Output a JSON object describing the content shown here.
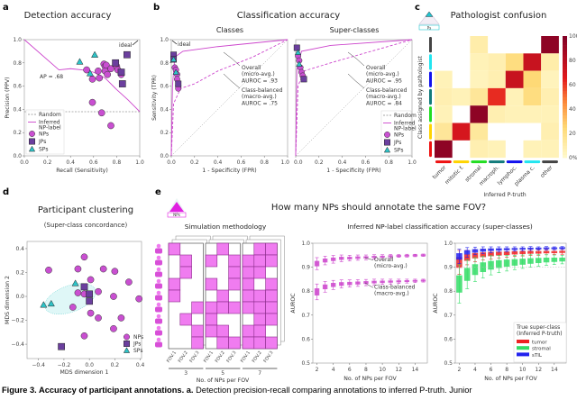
{
  "panels": {
    "a": {
      "letter": "a"
    },
    "b": {
      "letter": "b",
      "title": "Classification accuracy"
    },
    "c": {
      "letter": "c",
      "icon_label": "Ps"
    },
    "d": {
      "letter": "d"
    },
    "e": {
      "letter": "e",
      "title": "How many NPs should annotate the same FOV?",
      "icon_label": "NPs",
      "right_title": "Inferred NP-label classification accuracy (super-classes)"
    }
  },
  "colors": {
    "NPs": "#c94fd1",
    "JPs": "#6b3f9e",
    "SPs": "#2ec4c8",
    "curve": "#cc44cc",
    "sim_fill": "#f07cf0"
  },
  "caption": {
    "bold": "Figure 3. Accuracy of participant annotations. a.",
    "text": " Detection precision-recall comparing annotations to inferred P-truth. Junior"
  },
  "chart_data": [
    {
      "type": "scatter",
      "title": "Detection accuracy",
      "xlabel": "Recall (Sensitivity)",
      "ylabel": "Precision (PPV)",
      "xlim": [
        0,
        1
      ],
      "ylim": [
        0,
        1
      ],
      "xticks": [
        "0.0",
        "0.2",
        "0.4",
        "0.6",
        "0.8",
        "1.0"
      ],
      "yticks": [
        "0.0",
        "0.2",
        "0.4",
        "0.6",
        "0.8",
        "1.0"
      ],
      "grid": false,
      "legend_position": "bottom-left",
      "legend": [
        [
          "Random"
        ],
        [
          "Inferred",
          "NP-label"
        ],
        [
          "NPs"
        ],
        [
          "JPs"
        ],
        [
          "SPs"
        ]
      ],
      "annotations": {
        "ideal": "ideal",
        "ap": "AP = .68"
      },
      "random_baseline": 0.38,
      "curve": {
        "name": "Inferred NP-label",
        "x": [
          0,
          0.3,
          0.4,
          0.5,
          0.6,
          0.7,
          0.8,
          0.9,
          1.0
        ],
        "y": [
          1.0,
          0.74,
          0.75,
          0.74,
          0.72,
          0.67,
          0.57,
          0.48,
          0.38
        ]
      },
      "points": {
        "NPs": [
          [
            0.54,
            0.74
          ],
          [
            0.59,
            0.66
          ],
          [
            0.64,
            0.73
          ],
          [
            0.65,
            0.67
          ],
          [
            0.69,
            0.79
          ],
          [
            0.7,
            0.77
          ],
          [
            0.71,
            0.78
          ],
          [
            0.7,
            0.73
          ],
          [
            0.72,
            0.7
          ],
          [
            0.75,
            0.75
          ],
          [
            0.8,
            0.77
          ],
          [
            0.81,
            0.74
          ],
          [
            0.84,
            0.7
          ],
          [
            0.59,
            0.46
          ],
          [
            0.67,
            0.37
          ],
          [
            0.75,
            0.26
          ]
        ],
        "JPs": [
          [
            0.79,
            0.8
          ],
          [
            0.84,
            0.72
          ],
          [
            0.85,
            0.62
          ],
          [
            0.89,
            0.87
          ]
        ],
        "SPs": [
          [
            0.48,
            0.81
          ],
          [
            0.61,
            0.87
          ],
          [
            0.57,
            0.71
          ]
        ]
      }
    },
    {
      "type": "line",
      "title": "Classes",
      "xlabel": "1 - Specificity (FPR)",
      "ylabel": "Sensitivity (TPR)",
      "xlim": [
        0,
        1
      ],
      "ylim": [
        0,
        1
      ],
      "xticks": [
        "0.0",
        "0.2",
        "0.4",
        "0.6",
        "0.8",
        "1.0"
      ],
      "yticks": [
        "0.0",
        "0.2",
        "0.4",
        "0.6",
        "0.8",
        "1.0"
      ],
      "annotations": {
        "ideal": "ideal",
        "overall": [
          "Overall",
          "(micro-avg.)",
          "AUROC = .93"
        ],
        "balanced": [
          "Class-balanced",
          "(macro-avg.)",
          "AUROC = .75"
        ]
      },
      "series": [
        {
          "name": "Overall (micro-avg.)",
          "x": [
            0,
            0.01,
            0.03,
            0.1,
            0.4,
            1
          ],
          "y": [
            0,
            0.6,
            0.85,
            0.9,
            0.94,
            1
          ]
        },
        {
          "name": "Class-balanced (macro-avg.)",
          "x": [
            0,
            0.02,
            0.08,
            0.2,
            0.4,
            0.7,
            1
          ],
          "y": [
            0,
            0.45,
            0.58,
            0.62,
            0.73,
            0.85,
            1
          ]
        }
      ],
      "points": {
        "NPs": [
          [
            0.03,
            0.76
          ],
          [
            0.04,
            0.74
          ],
          [
            0.05,
            0.7
          ],
          [
            0.05,
            0.66
          ],
          [
            0.06,
            0.6
          ],
          [
            0.06,
            0.58
          ]
        ],
        "JPs": [
          [
            0.02,
            0.87
          ],
          [
            0.02,
            0.83
          ],
          [
            0.06,
            0.62
          ]
        ],
        "SPs": [
          [
            0.02,
            0.83
          ],
          [
            0.04,
            0.72
          ]
        ]
      }
    },
    {
      "type": "line",
      "title": "Super-classes",
      "xlabel": "1 - Specificity (FPR)",
      "xlim": [
        0,
        1
      ],
      "ylim": [
        0,
        1
      ],
      "xticks": [
        "0.0",
        "0.2",
        "0.4",
        "0.6",
        "0.8",
        "1.0"
      ],
      "legend_position": "bottom-right",
      "legend": [
        [
          "Random"
        ],
        [
          "Inferred",
          "NP-label"
        ],
        [
          "NPs"
        ],
        [
          "JPs"
        ],
        [
          "SPs"
        ]
      ],
      "annotations": {
        "overall": [
          "Overall",
          "(micro-avg.)",
          "AUROC = .95"
        ],
        "balanced": [
          "Class-balanced",
          "(macro-avg.)",
          "AUROC = .84"
        ]
      },
      "series": [
        {
          "name": "Overall (micro-avg.)",
          "x": [
            0,
            0.01,
            0.05,
            0.3,
            1
          ],
          "y": [
            0,
            0.75,
            0.9,
            0.95,
            1
          ]
        },
        {
          "name": "Class-balanced (macro-avg.)",
          "x": [
            0,
            0.02,
            0.07,
            0.3,
            1
          ],
          "y": [
            0,
            0.6,
            0.73,
            0.8,
            1
          ]
        }
      ],
      "points": {
        "NPs": [
          [
            0.02,
            0.86
          ],
          [
            0.03,
            0.82
          ],
          [
            0.04,
            0.76
          ],
          [
            0.05,
            0.72
          ],
          [
            0.06,
            0.69
          ]
        ],
        "JPs": [
          [
            0.01,
            0.93
          ],
          [
            0.07,
            0.66
          ]
        ],
        "SPs": [
          [
            0.02,
            0.89
          ],
          [
            0.03,
            0.79
          ]
        ]
      }
    },
    {
      "type": "heatmap",
      "title": "Pathologist confusion",
      "xlabel": "Inferred P-truth",
      "ylabel": "Class assigned by pathologist",
      "columns": [
        "tumor",
        "mitotic f.",
        "stromal",
        "macroph.",
        "lymphoc.",
        "plasma c.",
        "other"
      ],
      "rows": [
        "other",
        "plasma c.",
        "lymphoc.",
        "macroph.",
        "stromal",
        "mitotic f.",
        "tumor"
      ],
      "class_colors": {
        "tumor": "#ee1111",
        "mitotic f.": "#ffd400",
        "stromal": "#22dd22",
        "macroph.": "#127b7b",
        "lymphoc.": "#1111ee",
        "plasma c.": "#22e5f0",
        "other": "#444444"
      },
      "values": [
        [
          0,
          0,
          10,
          0,
          0,
          0,
          95
        ],
        [
          0,
          0,
          6,
          8,
          22,
          75,
          10
        ],
        [
          6,
          0,
          5,
          8,
          75,
          25,
          5
        ],
        [
          8,
          6,
          15,
          62,
          6,
          22,
          8
        ],
        [
          6,
          0,
          95,
          8,
          6,
          6,
          6
        ],
        [
          15,
          70,
          14,
          0,
          0,
          0,
          8
        ],
        [
          95,
          0,
          8,
          6,
          0,
          6,
          6
        ]
      ],
      "colorbar_ticks": [
        "100%",
        "80",
        "60",
        "40",
        "20",
        "0%"
      ],
      "range": [
        0,
        100
      ]
    },
    {
      "type": "scatter",
      "title": "Participant clustering",
      "subtitle": "(Super-class concordance)",
      "xlabel": "MDS dimension 1",
      "ylabel": "MDS dimension 2",
      "xlim": [
        -0.49,
        0.41
      ],
      "ylim": [
        -0.52,
        0.46
      ],
      "xticks": [
        "−0.4",
        "−0.2",
        "0.0",
        "0.2",
        "0.4"
      ],
      "yticks": [
        "−0.4",
        "−0.2",
        "0.0",
        "0.2",
        "0.4"
      ],
      "legend_position": "bottom-right",
      "legend": [
        [
          "NPs"
        ],
        [
          "JPs"
        ],
        [
          "SPs"
        ]
      ],
      "points": {
        "NPs": [
          [
            -0.04,
            0.33
          ],
          [
            -0.32,
            0.22
          ],
          [
            -0.09,
            0.23
          ],
          [
            0.11,
            0.23
          ],
          [
            0.2,
            0.21
          ],
          [
            0.01,
            0.14
          ],
          [
            0.31,
            0.12
          ],
          [
            -0.09,
            0.03
          ],
          [
            -0.04,
            0.02
          ],
          [
            0.07,
            0.04
          ],
          [
            0.19,
            0.0
          ],
          [
            0.39,
            -0.02
          ],
          [
            -0.13,
            -0.09
          ],
          [
            0.01,
            -0.14
          ],
          [
            0.07,
            -0.18
          ],
          [
            0.25,
            -0.18
          ],
          [
            0.19,
            -0.27
          ],
          [
            -0.04,
            -0.33
          ]
        ],
        "JPs": [
          [
            -0.04,
            0.08
          ],
          [
            0.0,
            0.02
          ],
          [
            0.0,
            -0.04
          ],
          [
            -0.22,
            -0.42
          ]
        ],
        "SPs": [
          [
            -0.11,
            0.11
          ],
          [
            -0.36,
            -0.07
          ],
          [
            -0.3,
            -0.06
          ]
        ]
      },
      "ellipse": {
        "center": [
          -0.15,
          -0.02
        ],
        "semi_axes": [
          0.21,
          0.11
        ],
        "angle_deg": -20
      }
    },
    {
      "type": "table",
      "title": "Simulation methodology",
      "xlabel": "No. of NPs per FOV",
      "fov_labels": [
        "FOV.1",
        "FOV.2",
        "FOV.3"
      ],
      "groups": [
        {
          "label": "3",
          "grid": [
            [
              1,
              0,
              0
            ],
            [
              0,
              1,
              0
            ],
            [
              0,
              1,
              0
            ],
            [
              1,
              0,
              0
            ],
            [
              1,
              0,
              0
            ],
            [
              0,
              0,
              1
            ],
            [
              0,
              1,
              0
            ],
            [
              0,
              0,
              1
            ],
            [
              0,
              0,
              1
            ]
          ]
        },
        {
          "label": "5",
          "grid": [
            [
              0,
              1,
              0
            ],
            [
              1,
              0,
              1
            ],
            [
              0,
              0,
              1
            ],
            [
              1,
              0,
              1
            ],
            [
              0,
              1,
              0
            ],
            [
              1,
              1,
              1
            ],
            [
              1,
              0,
              0
            ],
            [
              1,
              1,
              0
            ],
            [
              0,
              1,
              1
            ]
          ]
        },
        {
          "label": "7",
          "grid": [
            [
              0,
              1,
              1
            ],
            [
              1,
              1,
              1
            ],
            [
              1,
              1,
              0
            ],
            [
              1,
              0,
              1
            ],
            [
              1,
              1,
              1
            ],
            [
              1,
              1,
              1
            ],
            [
              0,
              1,
              1
            ],
            [
              1,
              1,
              0
            ],
            [
              1,
              1,
              1
            ]
          ]
        }
      ]
    },
    {
      "type": "line",
      "xlabel": "No. of NPs per FOV",
      "ylabel": "AUROC",
      "xlim": [
        1.5,
        15.5
      ],
      "ylim": [
        0.5,
        1.0
      ],
      "xticks": [
        "2",
        "4",
        "6",
        "8",
        "10",
        "12",
        "14"
      ],
      "yticks": [
        "0.5",
        "0.6",
        "0.7",
        "0.8",
        "0.9",
        "1.0"
      ],
      "x": [
        2,
        3,
        4,
        5,
        6,
        7,
        8,
        9,
        10,
        11,
        12,
        13,
        14,
        15
      ],
      "annotations": {
        "overall": [
          "Overall",
          "(micro-avg.)"
        ],
        "balanced": [
          "Class-balanced",
          "(macro-avg.)"
        ]
      },
      "series": [
        {
          "name": "Overall (micro-avg.)",
          "color": "#cc44cc",
          "values": [
            0.915,
            0.928,
            0.933,
            0.937,
            0.938,
            0.94,
            0.941,
            0.943,
            0.944,
            0.946,
            0.947,
            0.948,
            0.949,
            0.95
          ],
          "err": [
            0.025,
            0.018,
            0.016,
            0.014,
            0.012,
            0.011,
            0.01,
            0.009,
            0.008,
            0.007,
            0.006,
            0.006,
            0.005,
            0.005
          ]
        },
        {
          "name": "Class-balanced (macro-avg.)",
          "color": "#cc44cc",
          "values": [
            0.797,
            0.818,
            0.826,
            0.83,
            0.832,
            0.834,
            0.836,
            0.838,
            0.839,
            0.84,
            0.841,
            0.842,
            0.843,
            0.844
          ],
          "err": [
            0.033,
            0.022,
            0.019,
            0.017,
            0.015,
            0.014,
            0.013,
            0.012,
            0.011,
            0.01,
            0.009,
            0.008,
            0.007,
            0.006
          ]
        }
      ]
    },
    {
      "type": "line",
      "xlabel": "No. of NPs per FOV",
      "ylabel": "AUROC",
      "xlim": [
        1.5,
        15.5
      ],
      "ylim": [
        0.5,
        1.0
      ],
      "xticks": [
        "2",
        "4",
        "6",
        "8",
        "10",
        "12",
        "14"
      ],
      "yticks": [
        "0.5",
        "0.6",
        "0.7",
        "0.8",
        "0.9",
        "1.0"
      ],
      "x": [
        2,
        3,
        4,
        5,
        6,
        7,
        8,
        9,
        10,
        11,
        12,
        13,
        14,
        15
      ],
      "legend_position": "bottom-right",
      "legend_title": [
        "True super-class",
        "(Inferred P-truth)"
      ],
      "series": [
        {
          "name": "tumor",
          "color": "#ee2222",
          "values": [
            0.92,
            0.94,
            0.948,
            0.952,
            0.955,
            0.957,
            0.958,
            0.96,
            0.961,
            0.962,
            0.962,
            0.963,
            0.963,
            0.964
          ],
          "err": [
            0.05,
            0.03,
            0.025,
            0.022,
            0.02,
            0.018,
            0.017,
            0.015,
            0.014,
            0.013,
            0.012,
            0.011,
            0.01,
            0.01
          ]
        },
        {
          "name": "stromal",
          "color": "#33dd66",
          "values": [
            0.83,
            0.87,
            0.89,
            0.9,
            0.908,
            0.913,
            0.917,
            0.92,
            0.923,
            0.926,
            0.928,
            0.93,
            0.931,
            0.932
          ],
          "err": [
            0.08,
            0.06,
            0.05,
            0.045,
            0.04,
            0.036,
            0.033,
            0.03,
            0.028,
            0.026,
            0.024,
            0.022,
            0.02,
            0.018
          ]
        },
        {
          "name": "sTIL",
          "color": "#2222ee",
          "values": [
            0.945,
            0.962,
            0.968,
            0.971,
            0.973,
            0.974,
            0.975,
            0.976,
            0.977,
            0.978,
            0.978,
            0.979,
            0.979,
            0.98
          ],
          "err": [
            0.03,
            0.02,
            0.016,
            0.014,
            0.012,
            0.011,
            0.01,
            0.009,
            0.008,
            0.008,
            0.007,
            0.007,
            0.006,
            0.006
          ]
        }
      ]
    }
  ]
}
